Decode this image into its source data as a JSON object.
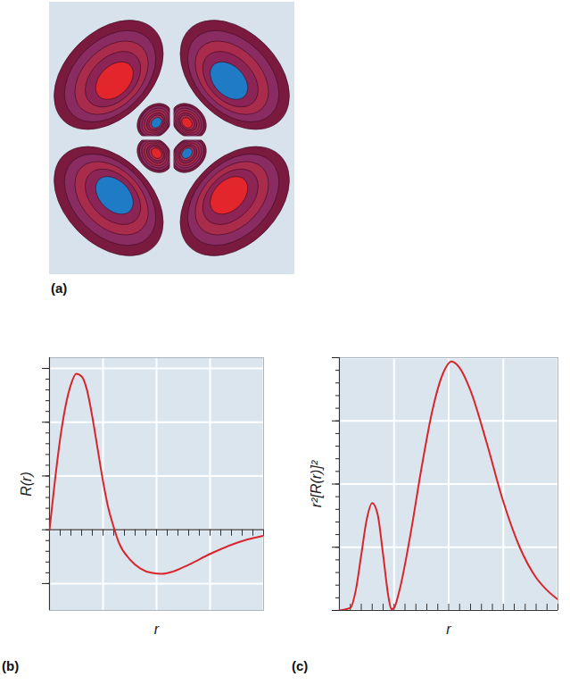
{
  "chart_data": [
    {
      "type": "orbital_contour",
      "panel_label": "(a)",
      "colors": [
        "#e3262b",
        "#1f7bc6"
      ]
    },
    {
      "type": "line",
      "panel_label": "(b)",
      "x_label": "r",
      "y_label": "R(r)",
      "x": [
        0,
        0.1,
        0.2,
        0.3,
        0.4,
        0.5,
        0.6,
        0.7,
        0.8,
        0.9,
        1.0,
        1.1,
        1.2,
        1.3,
        1.5,
        1.7,
        1.9,
        2.1,
        2.3,
        2.6,
        3.0,
        3.4,
        3.7,
        4.0
      ],
      "values": [
        0,
        0.9,
        1.7,
        2.3,
        2.7,
        2.9,
        2.85,
        2.6,
        2.1,
        1.5,
        0.9,
        0.4,
        0.05,
        -0.25,
        -0.55,
        -0.72,
        -0.8,
        -0.82,
        -0.78,
        -0.65,
        -0.45,
        -0.28,
        -0.18,
        -0.11
      ],
      "color": "#d7262c",
      "xlim": [
        0,
        4
      ],
      "xticks": [
        0,
        1,
        2,
        3,
        4
      ],
      "ylim": [
        -1.5,
        3.2
      ],
      "yticks": [
        -1,
        0,
        1,
        2,
        3
      ],
      "grid": true,
      "tick_labels": false
    },
    {
      "type": "line",
      "panel_label": "(c)",
      "x_label": "r",
      "y_label": "r²[R(r)]²",
      "x": [
        0,
        0.2,
        0.3,
        0.4,
        0.5,
        0.6,
        0.7,
        0.8,
        0.9,
        0.95,
        1.0,
        1.1,
        1.3,
        1.5,
        1.7,
        1.9,
        2.05,
        2.2,
        2.4,
        2.7,
        3.0,
        3.3,
        3.6,
        3.8,
        4.0
      ],
      "values": [
        0,
        0.1,
        0.8,
        2.2,
        3.6,
        4.25,
        3.8,
        2.2,
        0.5,
        0.05,
        0.1,
        0.8,
        3.0,
        5.6,
        7.9,
        9.4,
        9.85,
        9.6,
        8.7,
        6.6,
        4.3,
        2.5,
        1.3,
        0.8,
        0.43
      ],
      "color": "#d7262c",
      "xlim": [
        0,
        4
      ],
      "xticks": [
        0,
        1,
        2,
        3,
        4
      ],
      "ylim": [
        0,
        10
      ],
      "yticks": [
        0,
        2.5,
        5,
        7.5,
        10
      ],
      "grid": true,
      "tick_labels": false
    }
  ]
}
